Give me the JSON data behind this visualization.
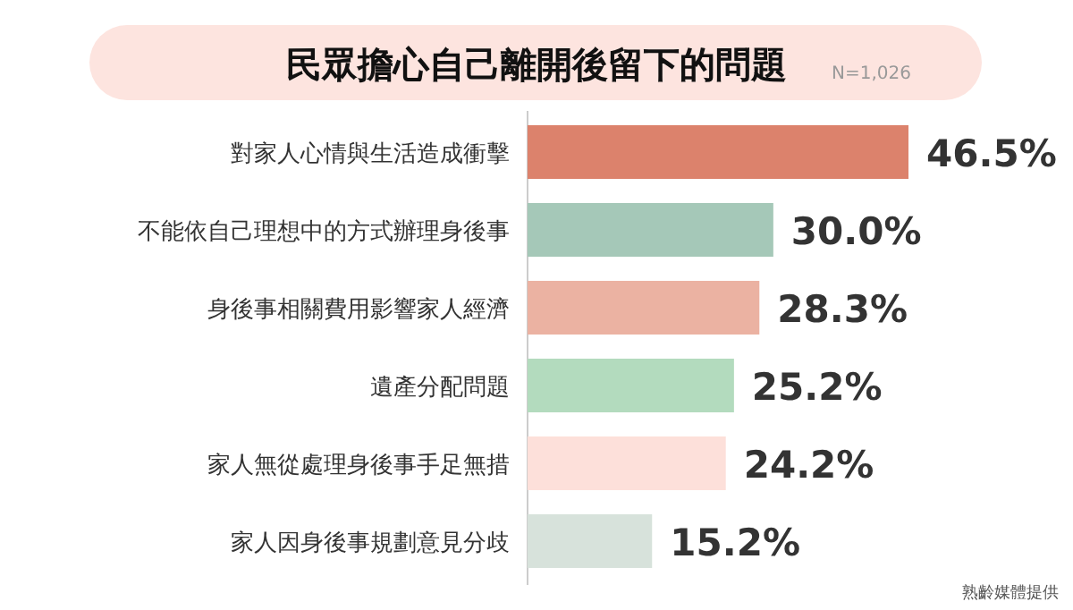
{
  "chart_data": {
    "type": "bar",
    "orientation": "horizontal",
    "title": "民眾擔心自己離開後留下的問題",
    "subtitle": "N=1,026",
    "categories": [
      "對家人心情與生活造成衝擊",
      "不能依自己理想中的方式辦理身後事",
      "身後事相關費用影響家人經濟",
      "遺產分配問題",
      "家人無從處理身後事手足無措",
      "家人因身後事規劃意見分歧"
    ],
    "values": [
      46.5,
      30.0,
      28.3,
      25.2,
      24.2,
      15.2
    ],
    "value_labels": [
      "46.5%",
      "30.0%",
      "28.3%",
      "25.2%",
      "24.2%",
      "15.2%"
    ],
    "colors": [
      "#dc826c",
      "#a5c8b8",
      "#ebb2a2",
      "#b3dbbe",
      "#fde0da",
      "#d7e2db"
    ],
    "annotations": [
      "熟齡媒體提供"
    ]
  }
}
